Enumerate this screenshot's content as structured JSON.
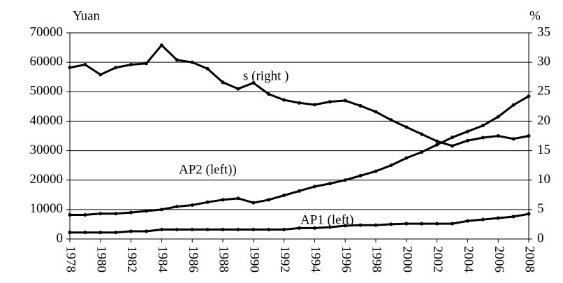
{
  "chart_data": {
    "type": "line",
    "y_label": "Yuan",
    "y2_label": "%",
    "annotations": [
      "s (right )",
      "AP2 (left))",
      "AP1 (left)"
    ],
    "x": [
      1978,
      1979,
      1980,
      1981,
      1982,
      1983,
      1984,
      1985,
      1986,
      1987,
      1988,
      1989,
      1990,
      1991,
      1992,
      1993,
      1994,
      1995,
      1996,
      1997,
      1998,
      1999,
      2000,
      2001,
      2002,
      2003,
      2004,
      2005,
      2006,
      2007,
      2008
    ],
    "xlim": [
      1978,
      2008
    ],
    "xticks": [
      1978,
      1980,
      1982,
      1984,
      1986,
      1988,
      1990,
      1992,
      1994,
      1996,
      1998,
      2000,
      2002,
      2004,
      2006,
      2008
    ],
    "ylim": [
      0,
      70000
    ],
    "yticks": [
      0,
      10000,
      20000,
      30000,
      40000,
      50000,
      60000,
      70000
    ],
    "y2lim": [
      0,
      35
    ],
    "y2ticks": [
      0,
      5,
      10,
      15,
      20,
      25,
      30,
      35
    ],
    "grid": true,
    "series": [
      {
        "name": "AP1 (left)",
        "color": "#000000",
        "values": [
          2200,
          2200,
          2200,
          2200,
          2600,
          2600,
          3200,
          3200,
          3200,
          3200,
          3200,
          3200,
          3200,
          3200,
          3200,
          3700,
          3700,
          4000,
          4500,
          4700,
          4700,
          5000,
          5200,
          5200,
          5200,
          5200,
          6100,
          6600,
          7100,
          7600,
          8500
        ]
      },
      {
        "name": "AP2 (left)",
        "color": "#000000",
        "values": [
          8200,
          8200,
          8600,
          8600,
          9000,
          9500,
          10000,
          11000,
          11500,
          12500,
          13300,
          13800,
          12300,
          13300,
          14800,
          16300,
          17800,
          18800,
          20000,
          21500,
          23000,
          25000,
          27500,
          29500,
          32000,
          34500,
          36500,
          38500,
          41500,
          45500,
          48500
        ]
      },
      {
        "name": "s (right)",
        "color": "#000000",
        "axis": "y2",
        "values": [
          29.1,
          29.6,
          27.9,
          29.1,
          29.6,
          29.8,
          32.9,
          30.4,
          30.0,
          28.9,
          26.6,
          25.5,
          26.5,
          24.6,
          23.6,
          23.1,
          22.8,
          23.3,
          23.5,
          22.6,
          21.6,
          20.2,
          19.0,
          17.8,
          16.6,
          15.8,
          16.7,
          17.2,
          17.5,
          17.0,
          17.5
        ]
      }
    ]
  }
}
